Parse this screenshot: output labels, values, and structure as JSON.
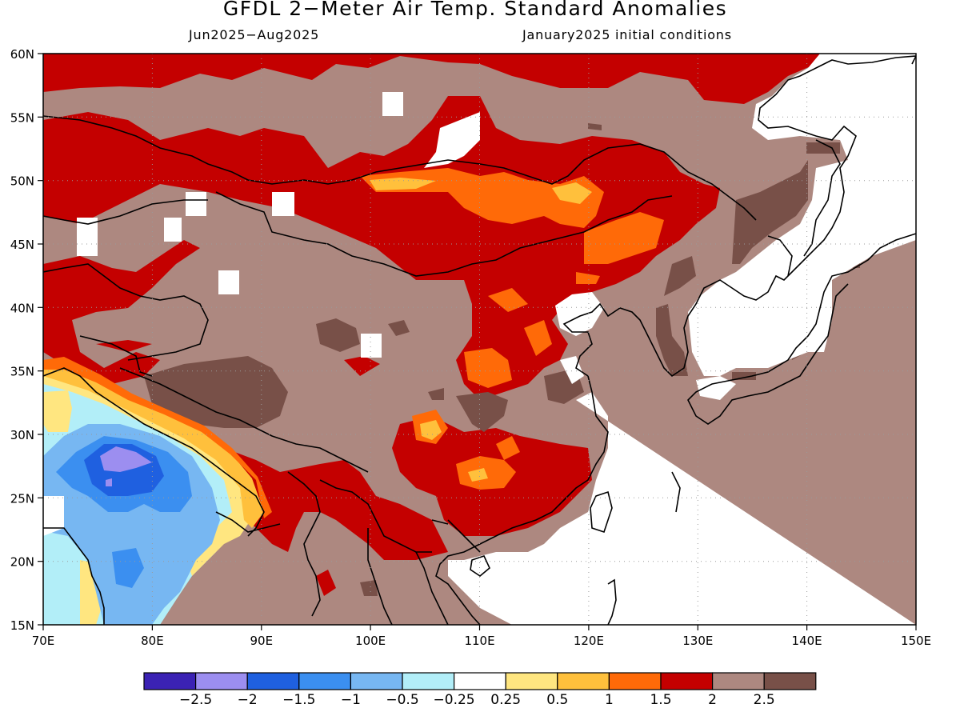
{
  "header": {
    "title": "GFDL 2−Meter Air Temp. Standard Anomalies",
    "period": "Jun2025−Aug2025",
    "init": "January2025 initial conditions"
  },
  "map": {
    "lon_range": [
      70,
      150
    ],
    "lat_range": [
      15,
      60
    ],
    "lon_ticks": [
      "70E",
      "80E",
      "90E",
      "100E",
      "110E",
      "120E",
      "130E",
      "140E",
      "150E"
    ],
    "lat_ticks": [
      "15N",
      "20N",
      "25N",
      "30N",
      "35N",
      "40N",
      "45N",
      "50N",
      "55N",
      "60N"
    ],
    "gridlines": "dotted"
  },
  "colorbar": {
    "colors": [
      "#3b22b4",
      "#9c8ef0",
      "#1f60e0",
      "#3b8ff0",
      "#77b7f2",
      "#b2eef8",
      "#ffffff",
      "#ffe680",
      "#ffc03c",
      "#ff6a08",
      "#c40000",
      "#ad8880",
      "#785048"
    ],
    "labels": [
      "−2.5",
      "−2",
      "−1.5",
      "−1",
      "−0.5",
      "−0.25",
      "0.25",
      "0.5",
      "1",
      "1.5",
      "2",
      "2.5"
    ]
  }
}
